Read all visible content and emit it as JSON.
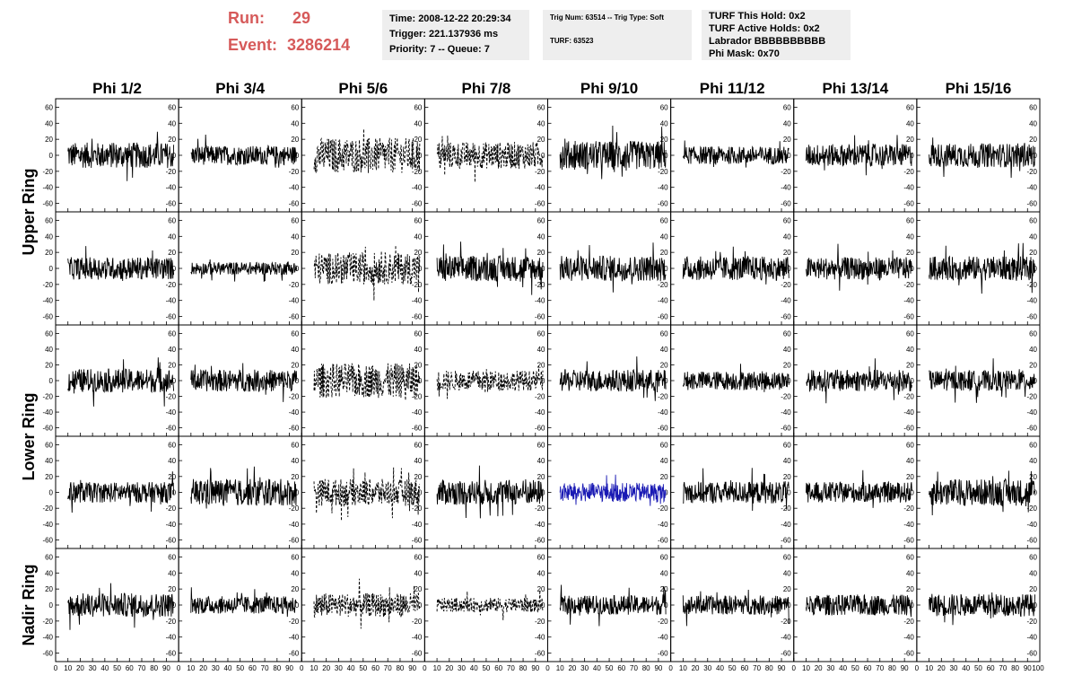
{
  "header": {
    "run_label": "Run:",
    "run_value": "29",
    "event_label": "Event:",
    "event_value": "3286214",
    "time": "Time: 2008-12-22 20:29:34",
    "trigger": "Trigger: 221.137936 ms",
    "priority": "Priority: 7 -- Queue: 7",
    "trig_num": "Trig Num: 63514 -- Trig Type: Soft",
    "turf": "TURF: 63523",
    "turf_hold": "TURF This Hold: 0x2",
    "turf_active": "TURF Active Holds: 0x2",
    "labrador": "Labrador BBBBBBBBBB",
    "phi_mask": "Phi Mask: 0x70"
  },
  "chart_data": {
    "type": "line",
    "columns": [
      "Phi 1/2",
      "Phi 3/4",
      "Phi 5/6",
      "Phi 7/8",
      "Phi 9/10",
      "Phi 11/12",
      "Phi 13/14",
      "Phi 15/16"
    ],
    "rows": [
      "Upper Ring",
      "Lower Ring",
      "Nadir Ring"
    ],
    "row_spans": [
      2,
      2,
      1
    ],
    "xlim": [
      0,
      100
    ],
    "ylim": [
      -65,
      65
    ],
    "yticks": [
      -60,
      -40,
      -20,
      0,
      20,
      40,
      60
    ],
    "xticks": [
      0,
      10,
      20,
      30,
      40,
      50,
      60,
      70,
      80,
      90,
      100
    ],
    "n_samples": 260,
    "trace_colors": {
      "normal": "#000000",
      "highlight": "#1a1ab4"
    },
    "panels": [
      [
        {
          "amp": 16,
          "style": "solid"
        },
        {
          "amp": 12,
          "style": "solid"
        },
        {
          "amp": 22,
          "style": "dashed"
        },
        {
          "amp": 17,
          "style": "dashed"
        },
        {
          "amp": 18,
          "style": "solid"
        },
        {
          "amp": 11,
          "style": "solid"
        },
        {
          "amp": 14,
          "style": "solid"
        },
        {
          "amp": 15,
          "style": "solid"
        }
      ],
      [
        {
          "amp": 14,
          "style": "solid"
        },
        {
          "amp": 8,
          "style": "solid"
        },
        {
          "amp": 20,
          "style": "dashed"
        },
        {
          "amp": 16,
          "style": "solid"
        },
        {
          "amp": 16,
          "style": "solid"
        },
        {
          "amp": 15,
          "style": "solid"
        },
        {
          "amp": 14,
          "style": "solid"
        },
        {
          "amp": 15,
          "style": "solid"
        }
      ],
      [
        {
          "amp": 15,
          "style": "solid"
        },
        {
          "amp": 14,
          "style": "solid"
        },
        {
          "amp": 22,
          "style": "dashed"
        },
        {
          "amp": 13,
          "style": "dashed"
        },
        {
          "amp": 14,
          "style": "solid"
        },
        {
          "amp": 12,
          "style": "solid"
        },
        {
          "amp": 14,
          "style": "solid"
        },
        {
          "amp": 13,
          "style": "solid"
        }
      ],
      [
        {
          "amp": 13,
          "style": "solid"
        },
        {
          "amp": 17,
          "style": "solid"
        },
        {
          "amp": 17,
          "style": "dashed"
        },
        {
          "amp": 16,
          "style": "solid"
        },
        {
          "amp": 12,
          "style": "highlight"
        },
        {
          "amp": 14,
          "style": "solid"
        },
        {
          "amp": 13,
          "style": "solid"
        },
        {
          "amp": 17,
          "style": "solid"
        }
      ],
      [
        {
          "amp": 15,
          "style": "solid"
        },
        {
          "amp": 11,
          "style": "solid"
        },
        {
          "amp": 15,
          "style": "dashed"
        },
        {
          "amp": 9,
          "style": "dashed"
        },
        {
          "amp": 12,
          "style": "solid"
        },
        {
          "amp": 12,
          "style": "solid"
        },
        {
          "amp": 13,
          "style": "solid"
        },
        {
          "amp": 14,
          "style": "solid"
        }
      ]
    ]
  }
}
